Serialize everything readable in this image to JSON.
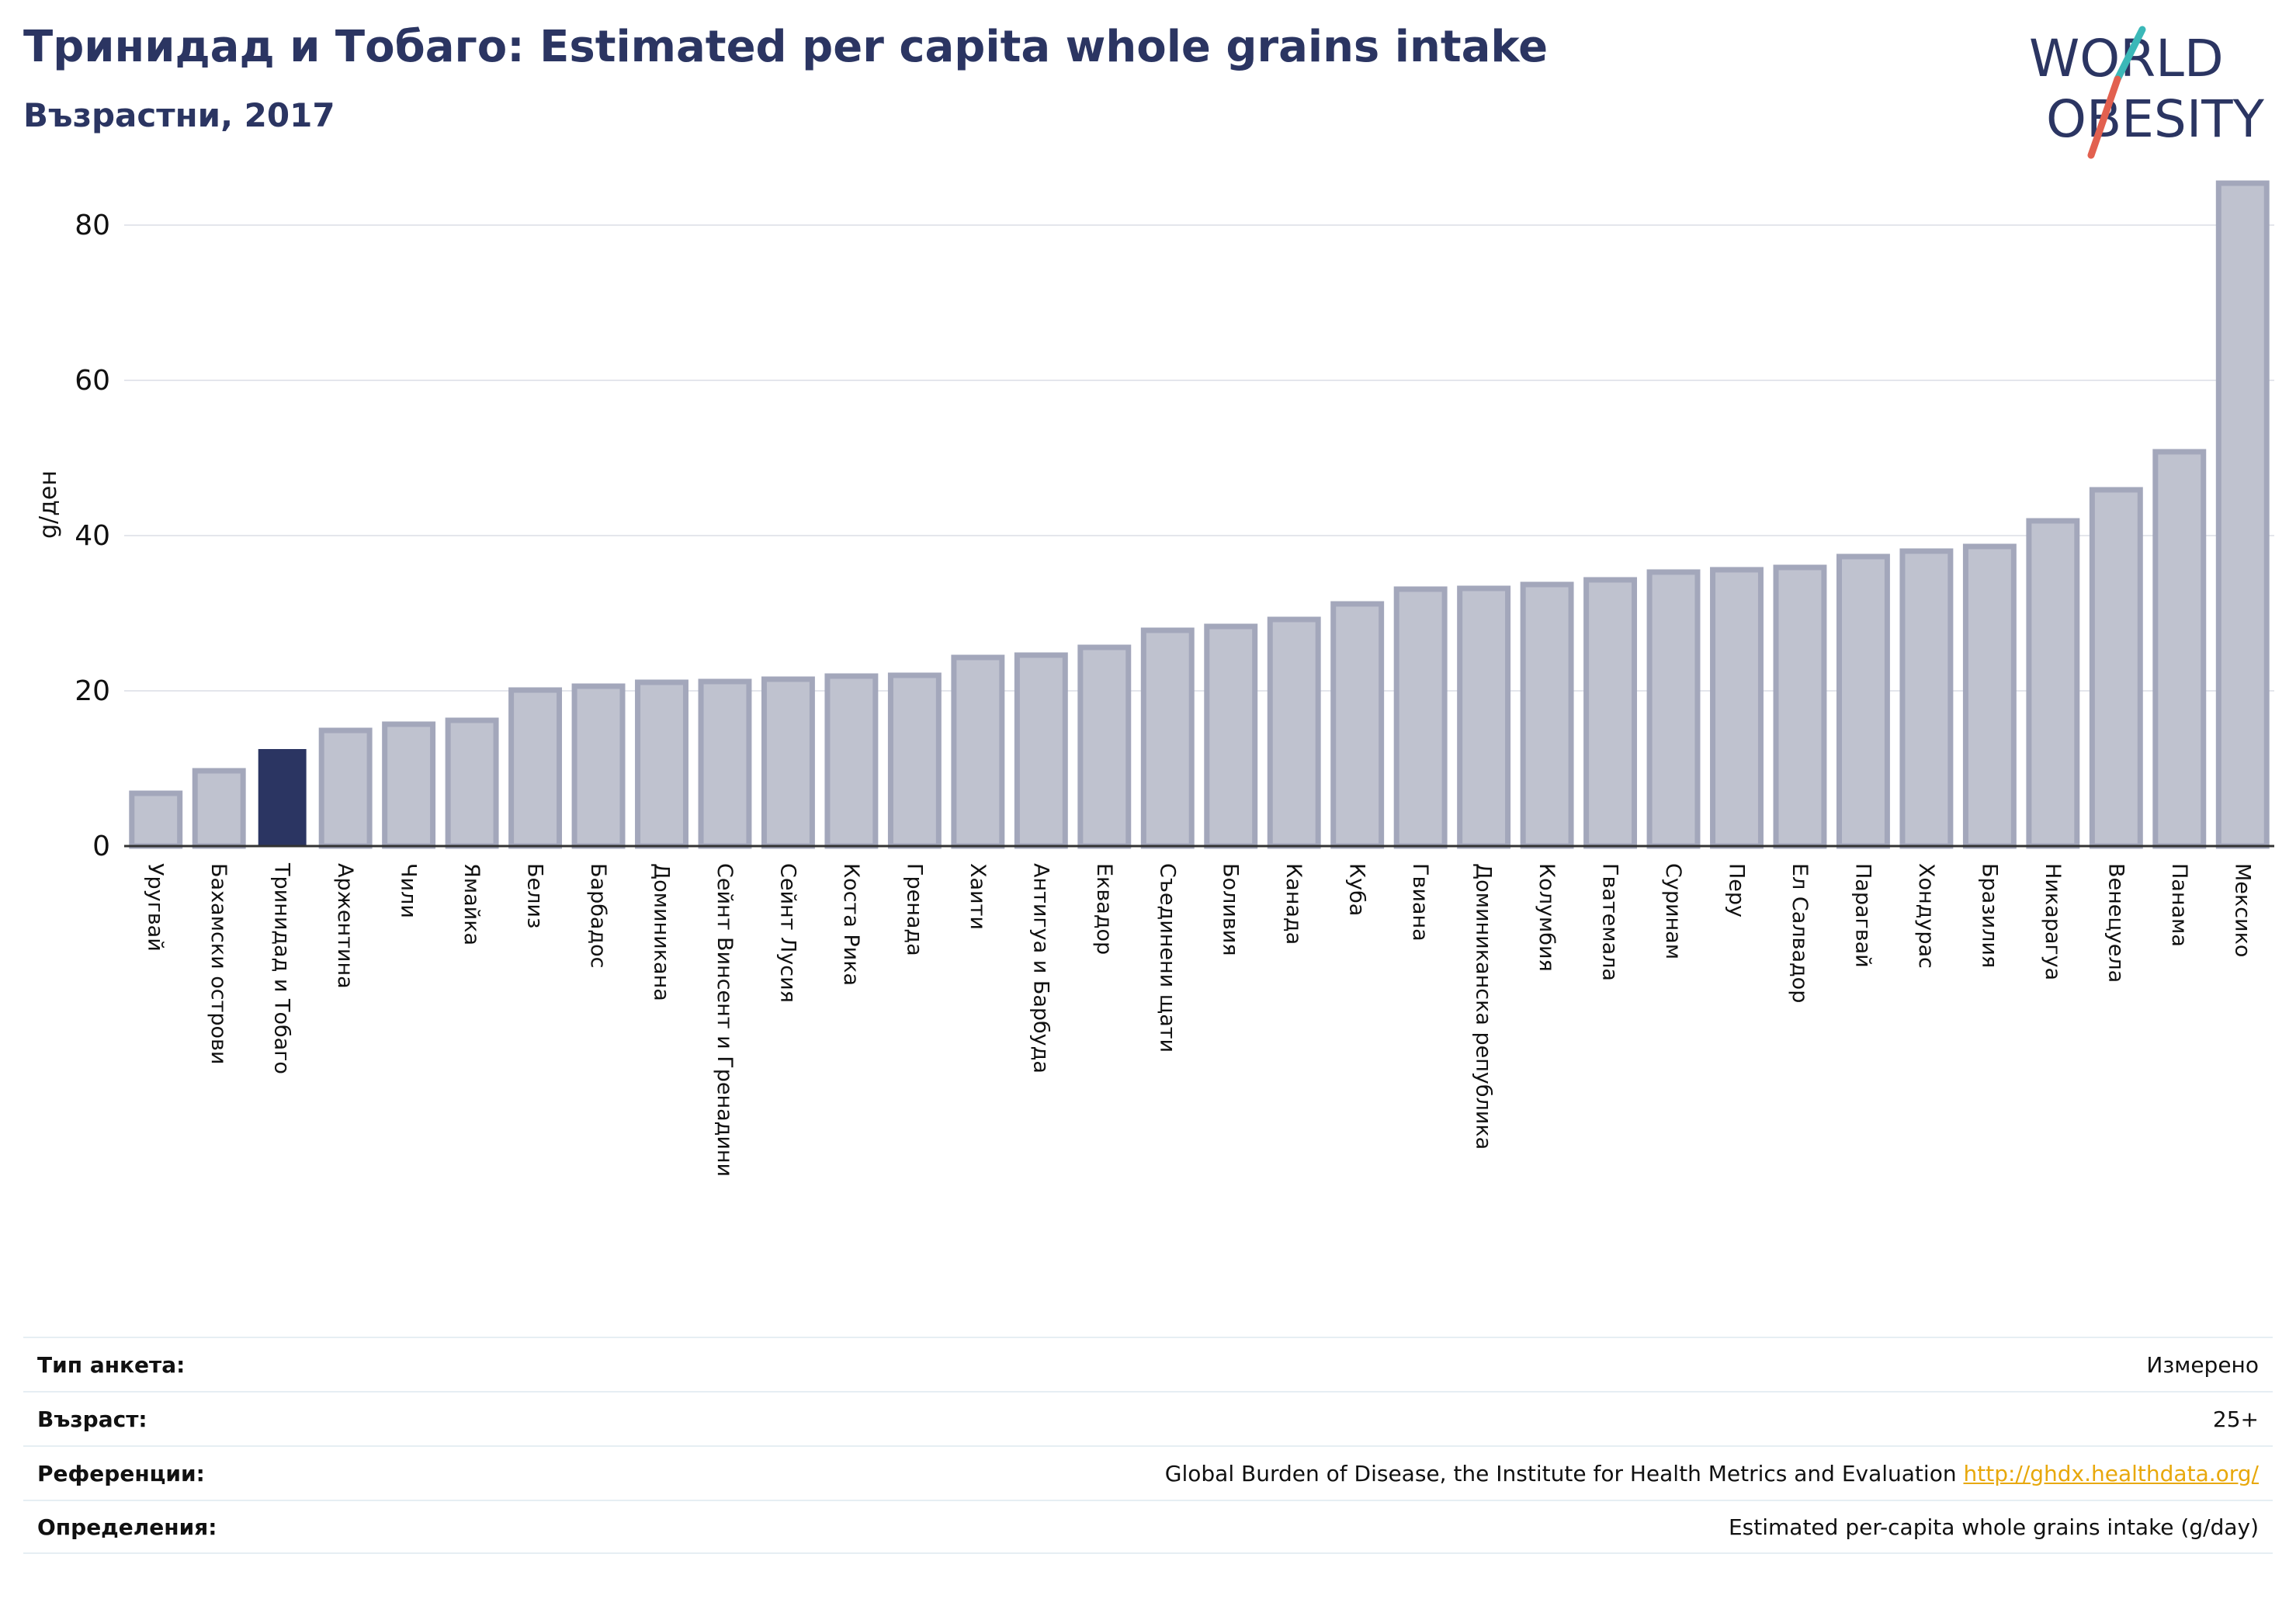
{
  "header": {
    "title": "Тринидад и Тобаго: Estimated per capita whole grains intake",
    "subtitle": "Възрастни, 2017"
  },
  "logo": {
    "line1": "WORLD",
    "line2": "OBESITY"
  },
  "colors": {
    "bar": "#bfc2cf",
    "bar_stroke": "#a3a7bb",
    "highlight": "#2b3562",
    "text": "#2b3562"
  },
  "chart_data": {
    "type": "bar",
    "ylabel": "g/ден",
    "ylim": [
      0,
      87
    ],
    "yticks": [
      0,
      20,
      40,
      60,
      80
    ],
    "grid": true,
    "highlight": "Тринидад и Тобаго",
    "categories": [
      "Уругвай",
      "Бахамски острови",
      "Тринидад и Тобаго",
      "Аржентина",
      "Чили",
      "Ямайка",
      "Белиз",
      "Барбадос",
      "Доминикана",
      "Сейнт Винсент и Гренадини",
      "Сейнт Лусия",
      "Коста Рика",
      "Гренада",
      "Хаити",
      "Антигуа и Барбуда",
      "Еквадор",
      "Съединени щати",
      "Боливия",
      "Канада",
      "Куба",
      "Гвиана",
      "Доминиканска република",
      "Колумбия",
      "Гватемала",
      "Суринам",
      "Перу",
      "Ел Салвадор",
      "Парагвай",
      "Хондурас",
      "Бразилия",
      "Никарагуа",
      "Венецуела",
      "Панама",
      "Мексико"
    ],
    "values": [
      6.8,
      9.7,
      12.5,
      14.9,
      15.7,
      16.2,
      20.1,
      20.6,
      21.1,
      21.2,
      21.5,
      21.9,
      22.0,
      24.3,
      24.6,
      25.6,
      27.8,
      28.3,
      29.2,
      31.2,
      33.1,
      33.2,
      33.7,
      34.3,
      35.3,
      35.6,
      35.9,
      37.3,
      38.0,
      38.6,
      41.9,
      45.9,
      50.8,
      85.4
    ]
  },
  "info": [
    {
      "label": "Тип анкета:",
      "value": "Измерено"
    },
    {
      "label": "Възраст:",
      "value": "25+"
    },
    {
      "label": "Референции:",
      "value": "Global Burden of Disease, the Institute for Health Metrics and Evaluation",
      "link": "http://ghdx.healthdata.org/"
    },
    {
      "label": "Определения:",
      "value": "Estimated per-capita whole grains intake (g/day)"
    }
  ]
}
